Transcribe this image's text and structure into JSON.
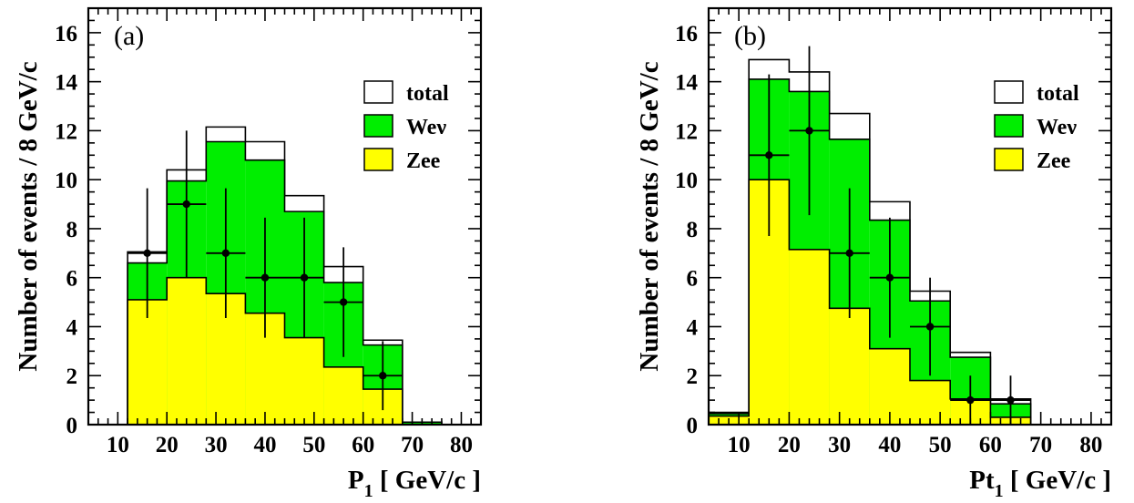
{
  "colors": {
    "total": "#ffffff",
    "wenu": "#00ee00",
    "zee": "#ffff00",
    "line": "#000000"
  },
  "chart_data": [
    {
      "type": "bar",
      "panel_label": "(a)",
      "xlabel": "P",
      "xlabel_sub": "1",
      "xlabel_unit": " [ GeV/c ]",
      "ylabel": "Number of events / 8 GeV/c",
      "xlim": [
        4,
        84
      ],
      "ylim": [
        0,
        17
      ],
      "x_ticks": [
        10,
        20,
        30,
        40,
        50,
        60,
        70,
        80
      ],
      "y_ticks": [
        0,
        2,
        4,
        6,
        8,
        10,
        12,
        14,
        16
      ],
      "bin_edges": [
        4,
        12,
        20,
        28,
        36,
        44,
        52,
        60,
        68,
        76,
        84
      ],
      "series": [
        {
          "name": "total",
          "values": [
            0,
            7.05,
            10.4,
            12.15,
            11.55,
            9.35,
            6.45,
            3.45,
            0.1,
            0
          ]
        },
        {
          "name": "Weν",
          "values": [
            0,
            6.6,
            9.95,
            11.55,
            10.8,
            8.7,
            5.8,
            3.25,
            0.1,
            0
          ]
        },
        {
          "name": "Zee",
          "values": [
            0,
            5.1,
            6.0,
            5.35,
            4.55,
            3.55,
            2.35,
            1.45,
            0,
            0
          ]
        }
      ],
      "data_points": [
        {
          "x": 16,
          "y": 7,
          "yerr": 2.65
        },
        {
          "x": 24,
          "y": 9,
          "yerr": 3.0
        },
        {
          "x": 32,
          "y": 7,
          "yerr": 2.65
        },
        {
          "x": 40,
          "y": 6,
          "yerr": 2.45
        },
        {
          "x": 48,
          "y": 6,
          "yerr": 2.45
        },
        {
          "x": 56,
          "y": 5,
          "yerr": 2.24
        },
        {
          "x": 64,
          "y": 2,
          "yerr": 1.41
        }
      ],
      "legend": [
        "total",
        "Weν",
        "Zee"
      ],
      "legend_position": "top-right"
    },
    {
      "type": "bar",
      "panel_label": "(b)",
      "xlabel": "Pt",
      "xlabel_sub": "1",
      "xlabel_unit": " [ GeV/c ]",
      "ylabel": "Number of events / 8 GeV/c",
      "xlim": [
        4,
        84
      ],
      "ylim": [
        0,
        17
      ],
      "x_ticks": [
        10,
        20,
        30,
        40,
        50,
        60,
        70,
        80
      ],
      "y_ticks": [
        0,
        2,
        4,
        6,
        8,
        10,
        12,
        14,
        16
      ],
      "bin_edges": [
        4,
        12,
        20,
        28,
        36,
        44,
        52,
        60,
        68,
        76,
        84
      ],
      "series": [
        {
          "name": "total",
          "values": [
            0.5,
            14.9,
            14.4,
            12.7,
            9.1,
            5.45,
            2.95,
            1.05,
            0,
            0
          ]
        },
        {
          "name": "Weν",
          "values": [
            0.45,
            14.1,
            13.6,
            11.65,
            8.35,
            5.05,
            2.75,
            0.85,
            0,
            0
          ]
        },
        {
          "name": "Zee",
          "values": [
            0.35,
            10.0,
            7.15,
            4.75,
            3.1,
            1.8,
            1.05,
            0.3,
            0,
            0
          ]
        }
      ],
      "data_points": [
        {
          "x": 16,
          "y": 11,
          "yerr": 3.3
        },
        {
          "x": 24,
          "y": 12,
          "yerr": 3.45
        },
        {
          "x": 32,
          "y": 7,
          "yerr": 2.65
        },
        {
          "x": 40,
          "y": 6,
          "yerr": 2.45
        },
        {
          "x": 48,
          "y": 4,
          "yerr": 2.0
        },
        {
          "x": 56,
          "y": 1,
          "yerr": 1.0
        },
        {
          "x": 64,
          "y": 1,
          "yerr": 1.0
        }
      ],
      "legend": [
        "total",
        "Weν",
        "Zee"
      ],
      "legend_position": "top-right"
    }
  ]
}
